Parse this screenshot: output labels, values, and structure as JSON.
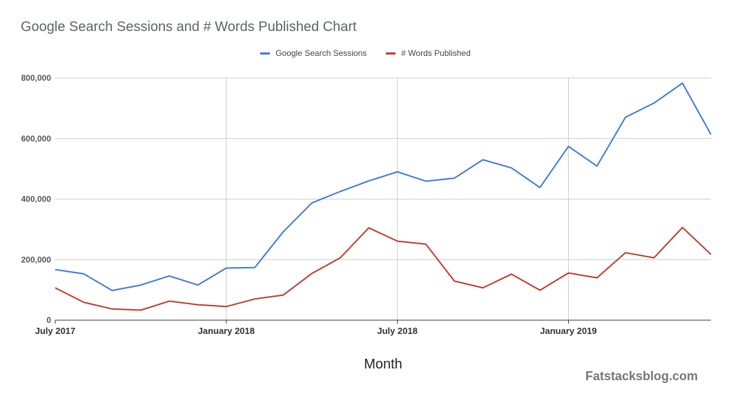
{
  "chart_data": {
    "type": "line",
    "title": "Google Search Sessions and # Words Published Chart",
    "xlabel": "Month",
    "ylabel": "",
    "ylim": [
      0,
      800000
    ],
    "yticks": [
      "0",
      "200,000",
      "400,000",
      "600,000",
      "800,000"
    ],
    "xticks": [
      "July 2017",
      "January 2018",
      "July 2018",
      "January 2019"
    ],
    "x": [
      "2017-07",
      "2017-08",
      "2017-09",
      "2017-10",
      "2017-11",
      "2017-12",
      "2018-01",
      "2018-02",
      "2018-03",
      "2018-04",
      "2018-05",
      "2018-06",
      "2018-07",
      "2018-08",
      "2018-09",
      "2018-10",
      "2018-11",
      "2018-12",
      "2019-01",
      "2019-02",
      "2019-03",
      "2019-04",
      "2019-05",
      "2019-06"
    ],
    "series": [
      {
        "name": "Google Search Sessions",
        "color": "#3c78d8",
        "values": [
          167000,
          153000,
          98000,
          116000,
          146000,
          116000,
          172000,
          174000,
          292000,
          387000,
          425000,
          460000,
          490000,
          459000,
          469000,
          530000,
          503000,
          438000,
          574000,
          509000,
          670000,
          717000,
          783000,
          613000
        ]
      },
      {
        "name": "# Words Published",
        "color": "#c0392b",
        "values": [
          107000,
          59000,
          37000,
          33000,
          63000,
          51000,
          45000,
          70000,
          83000,
          154000,
          206000,
          305000,
          261000,
          251000,
          129000,
          107000,
          152000,
          99000,
          156000,
          140000,
          223000,
          206000,
          306000,
          217000
        ]
      }
    ],
    "grid": true,
    "legend_position": "top-center"
  },
  "watermark": "Fatstacksblog.com"
}
